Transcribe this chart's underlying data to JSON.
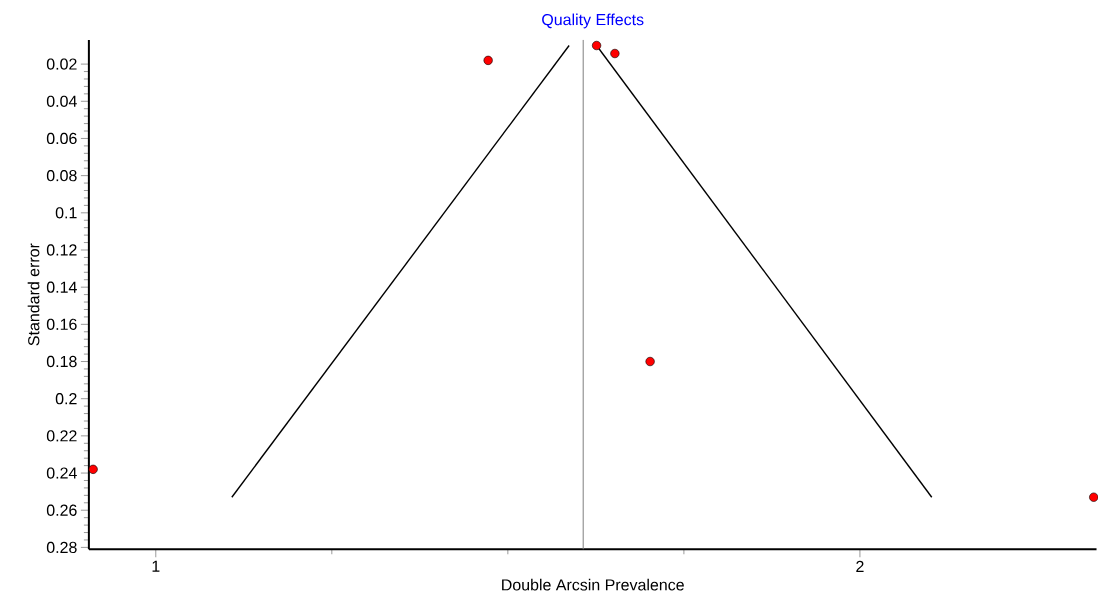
{
  "chart_data": {
    "type": "scatter",
    "title": "Quality Effects",
    "xlabel": "Double Arcsin Prevalence",
    "ylabel": "Standard error",
    "xlim": [
      0.905,
      2.336
    ],
    "ylim": [
      0.281,
      0.007
    ],
    "xticks": [
      1,
      2
    ],
    "yticks": [
      0.02,
      0.04,
      0.06,
      0.08,
      0.1,
      0.12,
      0.14,
      0.16,
      0.18,
      0.2,
      0.22,
      0.24,
      0.26,
      0.28
    ],
    "grid": false,
    "series": [
      {
        "color": "#ff0000",
        "marker": "circle",
        "x": [
          0.911,
          1.472,
          1.626,
          1.652,
          1.702,
          2.332
        ],
        "values": [
          0.238,
          0.018,
          0.01,
          0.0143,
          0.18,
          0.253
        ]
      },
      {
        "type": "line",
        "color": "#000000",
        "marker": "none",
        "x": [
          1.108,
          1.587
        ],
        "values": [
          0.253,
          0.01
        ]
      },
      {
        "type": "line",
        "color": "#000000",
        "marker": "none",
        "x": [
          1.626,
          2.102
        ],
        "values": [
          0.01,
          0.253
        ]
      }
    ],
    "ref_lines": [
      {
        "axis": "x",
        "value": 1.607,
        "color": "#808080"
      }
    ]
  }
}
